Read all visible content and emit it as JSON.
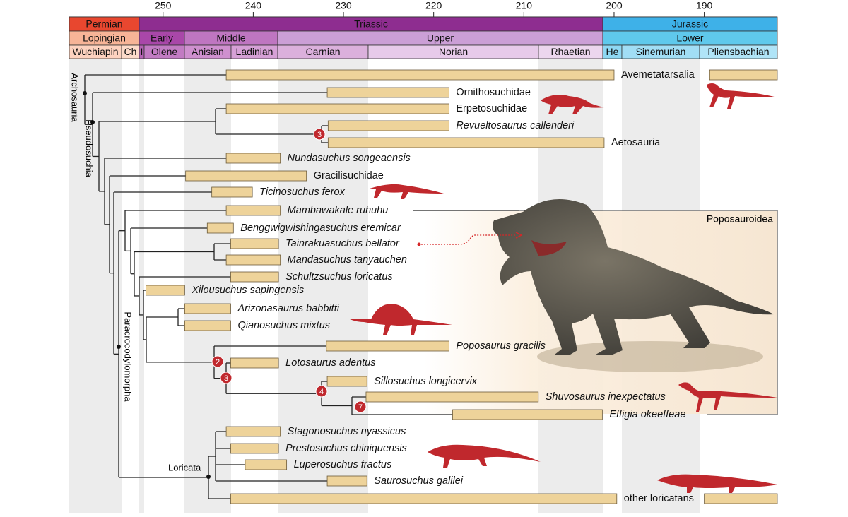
{
  "time_axis": {
    "lim": [
      260.4,
      181.9
    ],
    "ticks": [
      250,
      240,
      230,
      220,
      210,
      200,
      190
    ]
  },
  "periods": [
    "Permian",
    "Triassic",
    "Jurassic"
  ],
  "epochs": [
    "Lopingian",
    "Early",
    "Middle",
    "Upper",
    "Lower"
  ],
  "stages": [
    "Wuchiapin",
    "Ch",
    "I",
    "Olene",
    "Anisian",
    "Ladinian",
    "Carnian",
    "Norian",
    "Rhaetian",
    "He",
    "Sinemurian",
    "Pliensbachian"
  ],
  "taxa": [
    {
      "label": "Avemetatarsalia",
      "ranges": [
        [
          243.0,
          200.0
        ],
        [
          189.4,
          181.9
        ]
      ]
    },
    {
      "label": "Ornithosuchidae",
      "ranges": [
        [
          231.8,
          218.3
        ]
      ]
    },
    {
      "label": "Erpetosuchidae",
      "ranges": [
        [
          243.0,
          218.3
        ]
      ]
    },
    {
      "label": "Revueltosaurus callenderi",
      "italic": true,
      "ranges": [
        [
          231.7,
          218.3
        ]
      ]
    },
    {
      "label": "Aetosauria",
      "ranges": [
        [
          231.7,
          201.1
        ]
      ]
    },
    {
      "label": "Nundasuchus songeaensis",
      "italic": true,
      "ranges": [
        [
          243.0,
          237.0
        ]
      ]
    },
    {
      "label": "Gracilisuchidae",
      "ranges": [
        [
          247.5,
          234.1
        ]
      ]
    },
    {
      "label": "Ticinosuchus ferox",
      "italic": true,
      "ranges": [
        [
          244.6,
          240.1
        ]
      ]
    },
    {
      "label": "Mambawakale ruhuhu",
      "italic": true,
      "ranges": [
        [
          243.0,
          237.0
        ]
      ]
    },
    {
      "label": "Benggwigwishingasuchus eremicar",
      "italic": true,
      "ranges": [
        [
          245.1,
          242.2
        ]
      ]
    },
    {
      "label": "Tainrakuasuchus bellator",
      "italic": true,
      "color": "#d62728",
      "ranges": [
        [
          242.5,
          237.2
        ]
      ]
    },
    {
      "label": "Mandasuchus tanyauchen",
      "italic": true,
      "ranges": [
        [
          243.0,
          237.0
        ]
      ]
    },
    {
      "label": "Schultzsuchus loricatus",
      "italic": true,
      "ranges": [
        [
          242.5,
          237.2
        ]
      ]
    },
    {
      "label": "Xilousuchus sapingensis",
      "italic": true,
      "ranges": [
        [
          251.9,
          247.6
        ]
      ]
    },
    {
      "label": "Arizonasaurus babbitti",
      "italic": true,
      "ranges": [
        [
          247.6,
          242.5
        ]
      ]
    },
    {
      "label": "Qianosuchus mixtus",
      "italic": true,
      "ranges": [
        [
          247.6,
          242.5
        ]
      ]
    },
    {
      "label": "Poposaurus gracilis",
      "italic": true,
      "ranges": [
        [
          231.9,
          218.3
        ]
      ]
    },
    {
      "label": "Lotosaurus adentus",
      "italic": true,
      "ranges": [
        [
          242.5,
          237.2
        ]
      ]
    },
    {
      "label": "Sillosuchus longicervix",
      "italic": true,
      "ranges": [
        [
          231.8,
          227.4
        ]
      ]
    },
    {
      "label": "Shuvosaurus inexpectatus",
      "italic": true,
      "ranges": [
        [
          227.5,
          208.4
        ]
      ]
    },
    {
      "label": "Effigia okeeffeae",
      "italic": true,
      "ranges": [
        [
          217.9,
          201.3
        ]
      ]
    },
    {
      "label": "Stagonosuchus nyassicus",
      "italic": true,
      "ranges": [
        [
          243.0,
          237.0
        ]
      ]
    },
    {
      "label": "Prestosuchus chiniquensis",
      "italic": true,
      "ranges": [
        [
          242.5,
          237.2
        ]
      ]
    },
    {
      "label": "Luperosuchus fractus",
      "italic": true,
      "ranges": [
        [
          240.9,
          236.3
        ]
      ]
    },
    {
      "label": "Saurosuchus galilei",
      "italic": true,
      "ranges": [
        [
          231.8,
          227.4
        ]
      ]
    },
    {
      "label": "other loricatans",
      "ranges": [
        [
          242.5,
          199.7
        ],
        [
          190.0,
          181.9
        ]
      ]
    }
  ],
  "clades": [
    "Archosauria",
    "Pseudosuchia",
    "Paracrocodylomorpha",
    "Loricata",
    "Poposauroidea"
  ],
  "node_labels": [
    "3",
    "2",
    "3",
    "4",
    "7"
  ]
}
